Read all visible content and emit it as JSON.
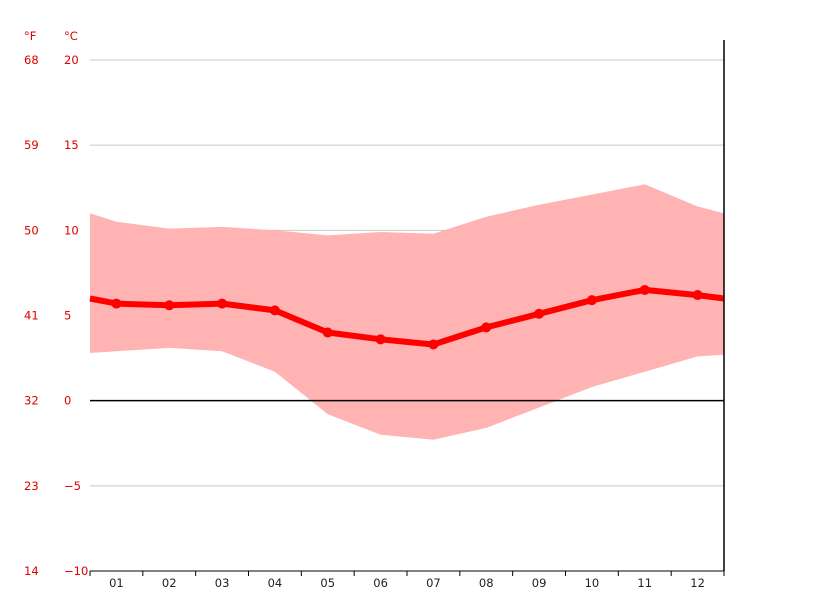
{
  "chart_data": {
    "type": "area",
    "title": "",
    "xlabel": "",
    "ylabel": "",
    "unit_f_label": "°F",
    "unit_c_label": "°C",
    "categories": [
      "01",
      "02",
      "03",
      "04",
      "05",
      "06",
      "07",
      "08",
      "09",
      "10",
      "11",
      "12"
    ],
    "ylim_c": [
      -10,
      20
    ],
    "y_ticks_c": [
      "20",
      "15",
      "10",
      "5",
      "0",
      "−5",
      "−10"
    ],
    "y_ticks_f": [
      "68",
      "59",
      "50",
      "41",
      "32",
      "23",
      "14"
    ],
    "y_tick_values_c": [
      20,
      15,
      10,
      5,
      0,
      -5,
      -10
    ],
    "grid": true,
    "series": [
      {
        "values": [
          5.7,
          5.6,
          5.7,
          5.3,
          4.0,
          3.6,
          3.3,
          4.3,
          5.1,
          5.9,
          6.5,
          6.2
        ]
      },
      {
        "values": [
          10.5,
          10.1,
          10.2,
          10.0,
          9.7,
          9.9,
          9.8,
          10.8,
          11.5,
          12.1,
          12.7,
          11.4
        ]
      },
      {
        "values": [
          2.9,
          3.1,
          2.9,
          1.7,
          -0.8,
          -2.0,
          -2.3,
          -1.6,
          -0.4,
          0.8,
          1.7,
          2.6
        ]
      }
    ],
    "edge_values": {
      "left": {
        "mean": 6.0,
        "high": 11.0,
        "low": 2.8
      },
      "right": {
        "mean": 6.0,
        "high": 11.0,
        "low": 2.7
      }
    },
    "colors": {
      "mean_line": "#ff0000",
      "range_fill": "#ffb3b3",
      "axis_labels": "#e00000",
      "grid": "#c8c8c8",
      "zero_line": "#000000"
    }
  }
}
